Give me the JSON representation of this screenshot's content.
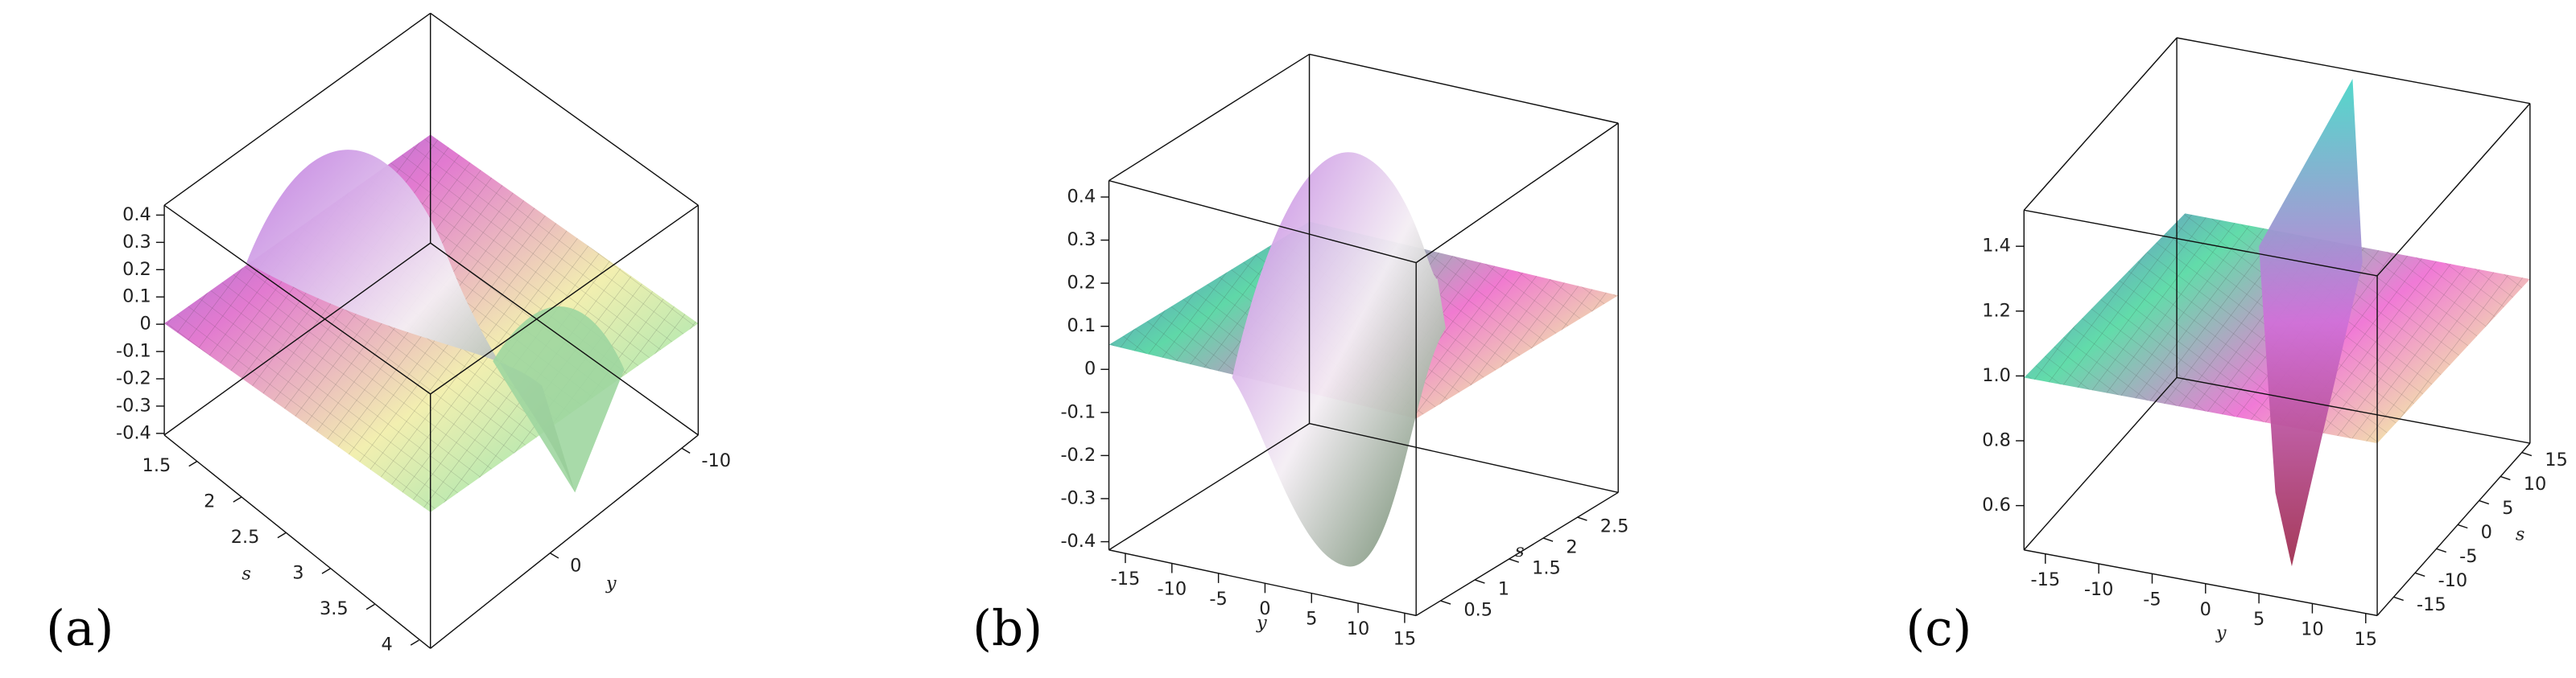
{
  "panels": [
    {
      "label": "(a)",
      "z_ticks": [
        0.4,
        0.3,
        0.2,
        0.1,
        0,
        -0.1,
        -0.2,
        -0.3,
        -0.4
      ],
      "s_axis": {
        "label": "s",
        "ticks": [
          1.5,
          2,
          2.5,
          3,
          3.5,
          4
        ]
      },
      "y_axis": {
        "label": "y",
        "ticks": [
          0,
          -10
        ]
      }
    },
    {
      "label": "(b)",
      "z_ticks": [
        0.4,
        0.3,
        0.2,
        0.1,
        0,
        -0.1,
        -0.2,
        -0.3,
        -0.4
      ],
      "y_axis": {
        "label": "y",
        "ticks": [
          -15,
          -10,
          -5,
          0,
          5,
          10,
          15
        ]
      },
      "s_axis": {
        "label": "s",
        "ticks": [
          0.5,
          1,
          1.5,
          2,
          2.5
        ]
      }
    },
    {
      "label": "(c)",
      "z_ticks": [
        1.4,
        1.2,
        {
          "value": 1,
          "label": "1.0"
        },
        0.8,
        0.6
      ],
      "y_axis": {
        "label": "y",
        "ticks": [
          -15,
          -10,
          -5,
          0,
          5,
          10,
          15
        ]
      },
      "s_axis": {
        "label": "s",
        "ticks": [
          -15,
          -10,
          -5,
          0,
          5,
          10,
          15
        ]
      }
    }
  ]
}
